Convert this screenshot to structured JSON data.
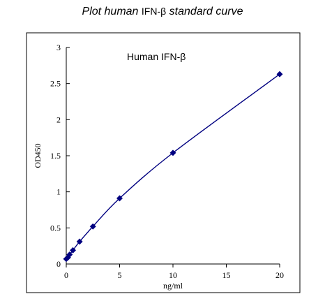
{
  "page_title": {
    "part1": "Plot human ",
    "part2": "IFN-β",
    "part3": " standard curve"
  },
  "chart_data": {
    "type": "line",
    "title": "Human IFN-β",
    "xlabel": "ng/ml",
    "ylabel": "OD450",
    "xlim": [
      0,
      20
    ],
    "ylim": [
      0,
      3
    ],
    "xticks": [
      0,
      5,
      10,
      15,
      20
    ],
    "yticks": [
      0,
      0.5,
      1,
      1.5,
      2,
      2.5,
      3
    ],
    "grid": false,
    "series": [
      {
        "color": "#000080",
        "marker": "diamond",
        "smooth": true,
        "x": [
          0,
          0.156,
          0.313,
          0.625,
          1.25,
          2.5,
          5,
          10,
          20
        ],
        "y": [
          0.07,
          0.09,
          0.13,
          0.19,
          0.31,
          0.52,
          0.91,
          1.54,
          2.63
        ]
      }
    ]
  }
}
